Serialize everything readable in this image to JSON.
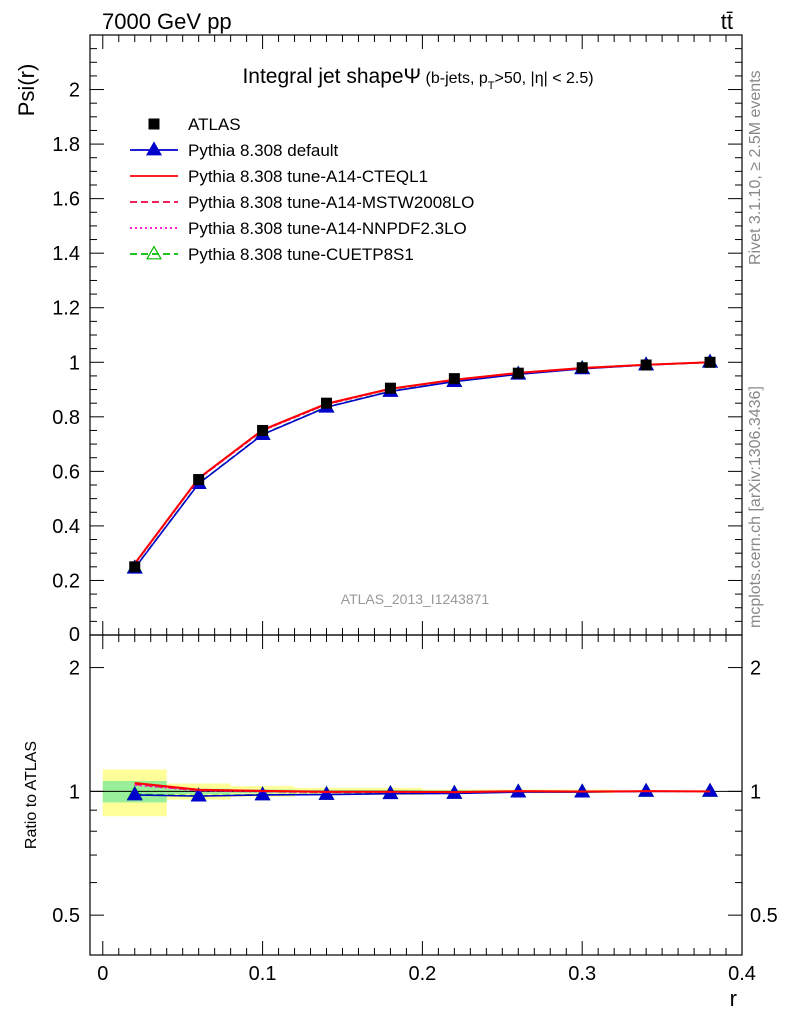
{
  "header": {
    "left": "7000 GeV pp",
    "right": "tt̄"
  },
  "side_text": {
    "rivet": "Rivet 3.1.10, ≥ 2.5M events",
    "mcplots": "mcplots.cern.ch [arXiv:1306.3436]"
  },
  "chart_data": {
    "type": "line",
    "title": "Integral jet shapeΨ",
    "title_suffix": " (b-jets, p",
    "title_sub": "T",
    "title_tail": ">50, |η| < 2.5)",
    "analysis_label": "ATLAS_2013_I1243871",
    "xlabel": "r",
    "ylabel": "Psi(r)",
    "ratio_ylabel": "Ratio to ATLAS",
    "xlim": [
      -0.008,
      0.4
    ],
    "ylim": [
      0,
      2.2
    ],
    "ratio_ylim": [
      0.4,
      2.4
    ],
    "ratio_log": true,
    "x_ticks": [
      "0",
      "0.1",
      "0.2",
      "0.3",
      "0.4"
    ],
    "y_ticks": [
      "0.2",
      "0.4",
      "0.6",
      "0.8",
      "1",
      "1.2",
      "1.4",
      "1.6",
      "1.8",
      "2"
    ],
    "y_tick_zero": "0",
    "ratio_ticks": [
      "0.5",
      "1",
      "2"
    ],
    "legend_placement": "top-left",
    "data": {
      "name": "ATLAS",
      "x": [
        0.02,
        0.06,
        0.1,
        0.14,
        0.18,
        0.22,
        0.26,
        0.3,
        0.34,
        0.38
      ],
      "y": [
        0.25,
        0.57,
        0.75,
        0.85,
        0.905,
        0.94,
        0.96,
        0.98,
        0.99,
        1.0
      ],
      "ratio_band_green": [
        [
          0.0,
          0.04,
          0.94,
          1.06
        ],
        [
          0.04,
          0.08,
          0.985,
          1.015
        ],
        [
          0.08,
          0.12,
          0.99,
          1.01
        ],
        [
          0.12,
          0.2,
          0.992,
          1.008
        ],
        [
          0.2,
          0.32,
          0.995,
          1.005
        ]
      ],
      "ratio_band_yellow": [
        [
          0.0,
          0.04,
          0.87,
          1.13
        ],
        [
          0.04,
          0.08,
          0.955,
          1.045
        ],
        [
          0.08,
          0.12,
          0.97,
          1.03
        ],
        [
          0.12,
          0.2,
          0.98,
          1.02
        ],
        [
          0.2,
          0.32,
          0.99,
          1.01
        ]
      ]
    },
    "series": [
      {
        "name": "Pythia 8.308 default",
        "color": "#0000cc",
        "style": "solid",
        "marker": "triangle-filled",
        "y": [
          0.245,
          0.555,
          0.735,
          0.835,
          0.893,
          0.929,
          0.956,
          0.976,
          0.99,
          1.0
        ]
      },
      {
        "name": "Pythia 8.308 tune-A14-CTEQL1",
        "color": "#ff0000",
        "style": "solid",
        "marker": "none",
        "y": [
          0.262,
          0.575,
          0.752,
          0.848,
          0.903,
          0.936,
          0.961,
          0.979,
          0.991,
          1.0
        ]
      },
      {
        "name": "Pythia 8.308 tune-A14-MSTW2008LO",
        "color": "#ee0044",
        "style": "dashed",
        "marker": "none",
        "y": [
          0.26,
          0.573,
          0.75,
          0.846,
          0.902,
          0.935,
          0.96,
          0.978,
          0.991,
          1.0
        ]
      },
      {
        "name": "Pythia 8.308 tune-A14-NNPDF2.3LO",
        "color": "#ff00cc",
        "style": "dotted",
        "marker": "none",
        "y": [
          0.259,
          0.572,
          0.749,
          0.845,
          0.901,
          0.935,
          0.96,
          0.978,
          0.99,
          1.0
        ]
      },
      {
        "name": "Pythia 8.308 tune-CUETP8S1",
        "color": "#00bb00",
        "style": "dashed",
        "marker": "triangle-open",
        "y": [
          0.246,
          0.556,
          0.736,
          0.836,
          0.894,
          0.93,
          0.957,
          0.977,
          0.99,
          1.0
        ]
      }
    ]
  }
}
